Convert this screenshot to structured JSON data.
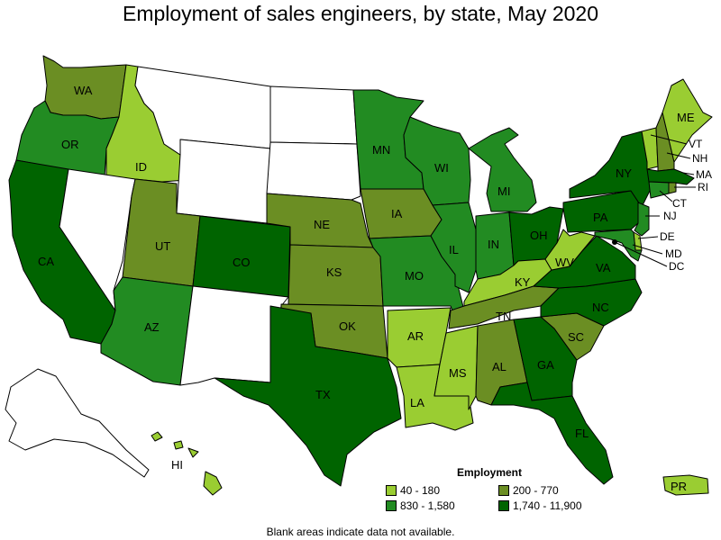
{
  "title": "Employment of sales engineers, by state, May 2020",
  "footnote": "Blank areas indicate data not available.",
  "legend": {
    "title": "Employment",
    "items": [
      {
        "range": "40 - 180",
        "color": "#9acd32"
      },
      {
        "range": "200 - 770",
        "color": "#6b8e23"
      },
      {
        "range": "830 - 1,580",
        "color": "#228b22"
      },
      {
        "range": "1,740 - 11,900",
        "color": "#006400"
      }
    ]
  },
  "colors": {
    "no_data": "#ffffff",
    "bin1": "#9acd32",
    "bin2": "#6b8e23",
    "bin3": "#228b22",
    "bin4": "#006400"
  },
  "states": [
    {
      "abbr": "WA",
      "bin": "200 - 770"
    },
    {
      "abbr": "OR",
      "bin": "830 - 1,580"
    },
    {
      "abbr": "CA",
      "bin": "1,740 - 11,900"
    },
    {
      "abbr": "ID",
      "bin": "40 - 180"
    },
    {
      "abbr": "UT",
      "bin": "200 - 770"
    },
    {
      "abbr": "AZ",
      "bin": "830 - 1,580"
    },
    {
      "abbr": "CO",
      "bin": "1,740 - 11,900"
    },
    {
      "abbr": "NE",
      "bin": "200 - 770"
    },
    {
      "abbr": "KS",
      "bin": "200 - 770"
    },
    {
      "abbr": "OK",
      "bin": "200 - 770"
    },
    {
      "abbr": "TX",
      "bin": "1,740 - 11,900"
    },
    {
      "abbr": "MN",
      "bin": "830 - 1,580"
    },
    {
      "abbr": "IA",
      "bin": "200 - 770"
    },
    {
      "abbr": "MO",
      "bin": "830 - 1,580"
    },
    {
      "abbr": "AR",
      "bin": "40 - 180"
    },
    {
      "abbr": "LA",
      "bin": "40 - 180"
    },
    {
      "abbr": "WI",
      "bin": "830 - 1,580"
    },
    {
      "abbr": "IL",
      "bin": "830 - 1,580"
    },
    {
      "abbr": "MI",
      "bin": "830 - 1,580"
    },
    {
      "abbr": "IN",
      "bin": "830 - 1,580"
    },
    {
      "abbr": "OH",
      "bin": "1,740 - 11,900"
    },
    {
      "abbr": "KY",
      "bin": "40 - 180"
    },
    {
      "abbr": "TN",
      "bin": "200 - 770"
    },
    {
      "abbr": "MS",
      "bin": "40 - 180"
    },
    {
      "abbr": "AL",
      "bin": "200 - 770"
    },
    {
      "abbr": "GA",
      "bin": "1,740 - 11,900"
    },
    {
      "abbr": "FL",
      "bin": "1,740 - 11,900"
    },
    {
      "abbr": "SC",
      "bin": "200 - 770"
    },
    {
      "abbr": "NC",
      "bin": "1,740 - 11,900"
    },
    {
      "abbr": "VA",
      "bin": "1,740 - 11,900"
    },
    {
      "abbr": "WV",
      "bin": "40 - 180"
    },
    {
      "abbr": "PA",
      "bin": "1,740 - 11,900"
    },
    {
      "abbr": "NY",
      "bin": "1,740 - 11,900"
    },
    {
      "abbr": "ME",
      "bin": "40 - 180"
    },
    {
      "abbr": "VT",
      "bin": "40 - 180"
    },
    {
      "abbr": "NH",
      "bin": "200 - 770"
    },
    {
      "abbr": "MA",
      "bin": "1,740 - 11,900"
    },
    {
      "abbr": "RI",
      "bin": "200 - 770"
    },
    {
      "abbr": "CT",
      "bin": "830 - 1,580"
    },
    {
      "abbr": "NJ",
      "bin": "830 - 1,580"
    },
    {
      "abbr": "DE",
      "bin": "40 - 180"
    },
    {
      "abbr": "MD",
      "bin": "830 - 1,580"
    },
    {
      "abbr": "DC",
      "bin": "1,740 - 11,900"
    },
    {
      "abbr": "HI",
      "bin": "40 - 180"
    },
    {
      "abbr": "PR",
      "bin": "40 - 180"
    },
    {
      "abbr": "MT",
      "bin": ""
    },
    {
      "abbr": "WY",
      "bin": ""
    },
    {
      "abbr": "ND",
      "bin": ""
    },
    {
      "abbr": "SD",
      "bin": ""
    },
    {
      "abbr": "NV",
      "bin": ""
    },
    {
      "abbr": "NM",
      "bin": ""
    },
    {
      "abbr": "AK",
      "bin": ""
    }
  ]
}
